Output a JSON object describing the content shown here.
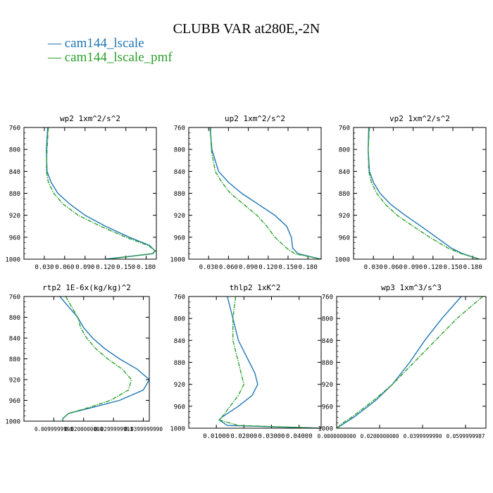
{
  "title": "CLUBB VAR at280E,-2N",
  "legend": [
    {
      "label": "cam144_lscale",
      "color": "#1f77b4"
    },
    {
      "label": "cam144_lscale_pmf",
      "color": "#2ca02c"
    }
  ],
  "chart_data": [
    {
      "type": "line",
      "title": "wp2   1xm^2/s^2",
      "xlim": [
        0.0,
        0.195
      ],
      "ylim": [
        760,
        1000
      ],
      "xticks": [
        0.03,
        0.06,
        0.09,
        0.12,
        0.15,
        0.18
      ],
      "xtick_labels": [
        "0.030",
        "0.060",
        "0.090",
        "0.120",
        "0.150",
        "0.180"
      ],
      "yticks": [
        760,
        800,
        840,
        880,
        920,
        960,
        1000
      ],
      "series": [
        {
          "name": "cam144_lscale",
          "y": [
            755,
            800,
            840,
            860,
            880,
            900,
            920,
            940,
            960,
            975,
            985,
            990,
            1000
          ],
          "x": [
            0.035,
            0.033,
            0.034,
            0.04,
            0.05,
            0.068,
            0.09,
            0.12,
            0.155,
            0.185,
            0.193,
            0.19,
            0.12
          ]
        },
        {
          "name": "cam144_lscale_pmf",
          "y": [
            755,
            800,
            840,
            860,
            880,
            900,
            920,
            940,
            960,
            975,
            985,
            990,
            1000
          ],
          "x": [
            0.036,
            0.034,
            0.033,
            0.036,
            0.044,
            0.058,
            0.08,
            0.113,
            0.15,
            0.183,
            0.194,
            0.188,
            0.125
          ]
        }
      ]
    },
    {
      "type": "line",
      "title": "up2   1xm^2/s^2",
      "xlim": [
        0.0,
        0.2
      ],
      "ylim": [
        760,
        1000
      ],
      "xticks": [
        0.03,
        0.06,
        0.09,
        0.12,
        0.15,
        0.18
      ],
      "xtick_labels": [
        "0.030",
        "0.060",
        "0.090",
        "0.120",
        "0.150",
        "0.180"
      ],
      "yticks": [
        760,
        800,
        840,
        880,
        920,
        960,
        1000
      ],
      "series": [
        {
          "name": "cam144_lscale",
          "y": [
            755,
            800,
            840,
            860,
            880,
            900,
            920,
            940,
            960,
            980,
            990,
            1000
          ],
          "x": [
            0.032,
            0.035,
            0.045,
            0.06,
            0.08,
            0.105,
            0.13,
            0.148,
            0.155,
            0.157,
            0.165,
            0.2
          ]
        },
        {
          "name": "cam144_lscale_pmf",
          "y": [
            755,
            800,
            840,
            860,
            880,
            900,
            920,
            940,
            960,
            980,
            990,
            1000
          ],
          "x": [
            0.033,
            0.034,
            0.04,
            0.05,
            0.063,
            0.083,
            0.103,
            0.118,
            0.13,
            0.148,
            0.16,
            0.2
          ]
        }
      ]
    },
    {
      "type": "line",
      "title": "vp2   1xm^2/s^2",
      "xlim": [
        0.0,
        0.2
      ],
      "ylim": [
        760,
        1000
      ],
      "xticks": [
        0.03,
        0.06,
        0.09,
        0.12,
        0.15,
        0.18
      ],
      "xtick_labels": [
        "0.030",
        "0.060",
        "0.090",
        "0.120",
        "0.150",
        "0.180"
      ],
      "yticks": [
        760,
        800,
        840,
        880,
        920,
        960,
        1000
      ],
      "series": [
        {
          "name": "cam144_lscale",
          "y": [
            755,
            800,
            840,
            860,
            880,
            900,
            920,
            940,
            960,
            980,
            990,
            1000
          ],
          "x": [
            0.023,
            0.022,
            0.024,
            0.03,
            0.04,
            0.056,
            0.078,
            0.102,
            0.125,
            0.148,
            0.165,
            0.19
          ]
        },
        {
          "name": "cam144_lscale_pmf",
          "y": [
            755,
            800,
            840,
            860,
            880,
            900,
            920,
            940,
            960,
            980,
            990,
            1000
          ],
          "x": [
            0.024,
            0.022,
            0.023,
            0.027,
            0.035,
            0.048,
            0.066,
            0.09,
            0.115,
            0.143,
            0.163,
            0.19
          ]
        }
      ]
    },
    {
      "type": "line",
      "title": "rtp2   1E-6x(kg/kg)^2",
      "xlim": [
        0.0,
        0.042
      ],
      "ylim": [
        760,
        1000
      ],
      "xticks": [
        0.01,
        0.02,
        0.03,
        0.04
      ],
      "xtick_labels": [
        "0.0099999998",
        "0.0200000000",
        "0.0299999993",
        "0.0399999990"
      ],
      "yticks": [
        760,
        800,
        840,
        880,
        920,
        960,
        1000
      ],
      "series": [
        {
          "name": "cam144_lscale",
          "y": [
            755,
            780,
            800,
            820,
            840,
            860,
            880,
            900,
            920,
            940,
            960,
            975,
            985,
            995,
            1000
          ],
          "x": [
            0.012,
            0.015,
            0.018,
            0.02,
            0.023,
            0.027,
            0.032,
            0.038,
            0.042,
            0.04,
            0.032,
            0.022,
            0.015,
            0.013,
            0.013
          ]
        },
        {
          "name": "cam144_lscale_pmf",
          "y": [
            755,
            780,
            800,
            820,
            840,
            860,
            880,
            900,
            920,
            940,
            960,
            975,
            985,
            995,
            1000
          ],
          "x": [
            0.014,
            0.016,
            0.018,
            0.019,
            0.021,
            0.024,
            0.028,
            0.033,
            0.036,
            0.035,
            0.029,
            0.021,
            0.015,
            0.013,
            0.013
          ]
        }
      ]
    },
    {
      "type": "line",
      "title": "thlp2   1xK^2",
      "xlim": [
        0.0,
        0.048
      ],
      "ylim": [
        760,
        1000
      ],
      "xticks": [
        0.01,
        0.02,
        0.03,
        0.04
      ],
      "xtick_labels": [
        "0.01000",
        "0.02000",
        "0.03000",
        "0.04000"
      ],
      "yticks": [
        760,
        800,
        840,
        880,
        920,
        960,
        1000
      ],
      "series": [
        {
          "name": "cam144_lscale",
          "y": [
            755,
            800,
            840,
            860,
            880,
            900,
            920,
            940,
            960,
            980,
            985,
            995,
            1000
          ],
          "x": [
            0.014,
            0.016,
            0.018,
            0.02,
            0.022,
            0.024,
            0.025,
            0.023,
            0.018,
            0.012,
            0.011,
            0.014,
            0.048
          ]
        },
        {
          "name": "cam144_lscale_pmf",
          "y": [
            755,
            800,
            840,
            860,
            880,
            900,
            920,
            940,
            960,
            980,
            985,
            995,
            1000
          ],
          "x": [
            0.017,
            0.016,
            0.016,
            0.017,
            0.018,
            0.019,
            0.02,
            0.018,
            0.015,
            0.012,
            0.011,
            0.018,
            0.048
          ]
        }
      ]
    },
    {
      "type": "line",
      "title": "wp3   1xm^3/s^3",
      "xlim": [
        0.0,
        0.0695
      ],
      "ylim": [
        760,
        1000
      ],
      "xticks": [
        0.0,
        0.02,
        0.04,
        0.06
      ],
      "xtick_labels": [
        "0.0000000000",
        "0.0200000000",
        "0.0399999990",
        "0.0599999987"
      ],
      "yticks": [
        760,
        800,
        840,
        880,
        920,
        960,
        1000
      ],
      "series": [
        {
          "name": "cam144_lscale",
          "y": [
            760,
            800,
            840,
            880,
            920,
            950,
            980,
            990,
            1000
          ],
          "x": [
            0.058,
            0.049,
            0.041,
            0.034,
            0.026,
            0.018,
            0.008,
            0.004,
            0.0
          ]
        },
        {
          "name": "cam144_lscale_pmf",
          "y": [
            760,
            800,
            840,
            880,
            920,
            950,
            980,
            990,
            1000
          ],
          "x": [
            0.068,
            0.056,
            0.046,
            0.036,
            0.026,
            0.017,
            0.007,
            0.003,
            0.0
          ]
        }
      ]
    }
  ]
}
